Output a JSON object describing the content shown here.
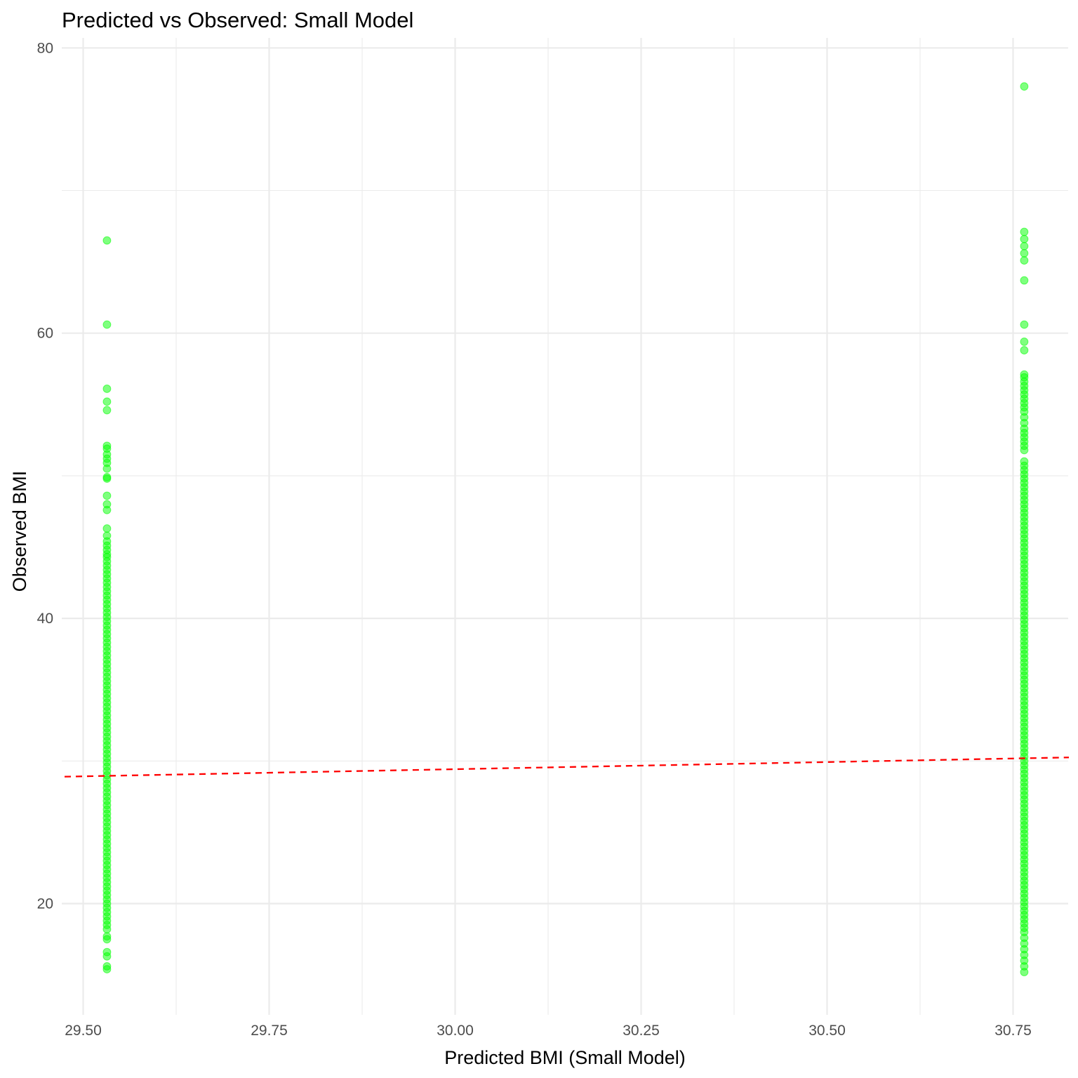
{
  "chart_data": {
    "type": "scatter",
    "title": "Predicted vs Observed: Small Model",
    "xlabel": "Predicted BMI (Small Model)",
    "ylabel": "Observed BMI",
    "xlim": [
      29.475,
      30.825
    ],
    "ylim": [
      12.9,
      80.8
    ],
    "x_ticks": [
      29.5,
      29.75,
      30.0,
      30.25,
      30.5,
      30.75
    ],
    "x_tick_labels": [
      "29.50",
      "29.75",
      "30.00",
      "30.25",
      "30.50",
      "30.75"
    ],
    "y_ticks": [
      20,
      40,
      60,
      80
    ],
    "y_tick_labels": [
      "20",
      "40",
      "60",
      "80"
    ],
    "grid": true,
    "legend": "none",
    "point_color": "#00ff00",
    "line_color": "#ff0000",
    "reference_line": {
      "style": "dashed",
      "x": [
        29.475,
        30.825
      ],
      "y": [
        28.9,
        30.25
      ]
    },
    "series": [
      {
        "x": 29.532,
        "values": [
          66.5,
          60.6,
          56.1,
          55.2,
          54.6,
          52.1,
          51.9,
          51.5,
          51.2,
          50.9,
          50.5,
          49.9,
          49.8,
          48.6,
          48.0,
          47.6,
          46.3,
          45.8,
          45.4,
          45.1,
          44.8,
          44.5,
          44.3,
          44.0,
          43.7,
          43.4,
          43.1,
          42.8,
          42.5,
          42.2,
          41.9,
          41.6,
          41.3,
          41.0,
          40.7,
          40.4,
          40.1,
          39.8,
          39.5,
          39.2,
          38.9,
          38.6,
          38.3,
          38.0,
          37.7,
          37.4,
          37.1,
          36.8,
          36.5,
          36.2,
          35.9,
          35.6,
          35.3,
          35.0,
          34.7,
          34.4,
          34.1,
          33.8,
          33.5,
          33.2,
          32.9,
          32.6,
          32.3,
          32.0,
          31.7,
          31.4,
          31.1,
          30.8,
          30.5,
          30.2,
          29.9,
          29.6,
          29.3,
          29.0,
          28.7,
          28.4,
          28.1,
          27.8,
          27.5,
          27.2,
          26.9,
          26.6,
          26.3,
          26.0,
          25.7,
          25.4,
          25.1,
          24.8,
          24.5,
          24.2,
          23.9,
          23.6,
          23.3,
          23.0,
          22.7,
          22.4,
          22.1,
          21.8,
          21.5,
          21.2,
          20.9,
          20.6,
          20.3,
          20.0,
          19.7,
          19.4,
          19.1,
          18.8,
          18.5,
          18.2,
          17.7,
          17.5,
          16.6,
          16.3,
          15.6,
          15.4
        ]
      },
      {
        "x": 30.765,
        "values": [
          77.3,
          67.1,
          66.6,
          66.1,
          65.6,
          65.1,
          63.7,
          60.6,
          59.4,
          58.8,
          57.1,
          56.9,
          56.6,
          56.3,
          56.0,
          55.7,
          55.4,
          55.1,
          54.8,
          54.5,
          54.1,
          53.7,
          53.3,
          53.0,
          52.7,
          52.4,
          52.1,
          51.8,
          51.0,
          50.7,
          50.4,
          50.1,
          49.8,
          49.5,
          49.2,
          48.9,
          48.6,
          48.3,
          48.0,
          47.7,
          47.4,
          47.1,
          46.8,
          46.5,
          46.2,
          45.9,
          45.6,
          45.3,
          45.0,
          44.7,
          44.4,
          44.1,
          43.8,
          43.5,
          43.2,
          42.9,
          42.6,
          42.3,
          42.0,
          41.7,
          41.4,
          41.1,
          40.8,
          40.5,
          40.2,
          39.9,
          39.6,
          39.3,
          39.0,
          38.7,
          38.4,
          38.1,
          37.8,
          37.5,
          37.2,
          36.9,
          36.6,
          36.3,
          36.0,
          35.7,
          35.4,
          35.1,
          34.8,
          34.5,
          34.2,
          33.9,
          33.6,
          33.3,
          33.0,
          32.7,
          32.4,
          32.1,
          31.8,
          31.5,
          31.2,
          30.9,
          30.6,
          30.3,
          30.0,
          29.7,
          29.4,
          29.1,
          28.8,
          28.5,
          28.2,
          27.9,
          27.6,
          27.3,
          27.0,
          26.7,
          26.4,
          26.1,
          25.8,
          25.5,
          25.2,
          24.9,
          24.6,
          24.3,
          24.0,
          23.7,
          23.4,
          23.1,
          22.8,
          22.5,
          22.2,
          21.9,
          21.6,
          21.3,
          21.0,
          20.7,
          20.4,
          20.1,
          19.8,
          19.5,
          19.2,
          18.9,
          18.6,
          18.3,
          18.0,
          17.6,
          17.2,
          16.8,
          16.4,
          16.0,
          15.6,
          15.2
        ]
      }
    ]
  }
}
